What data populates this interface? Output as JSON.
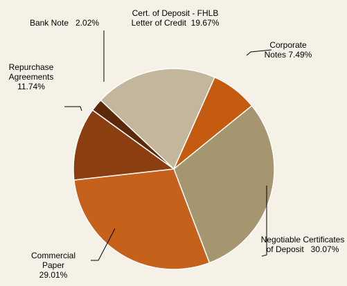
{
  "chart_data": {
    "type": "pie",
    "categories": [
      "Cert. of Deposit - FHLB Letter of Credit",
      "Corporate Notes",
      "Negotiable Certificates of Deposit",
      "Commercial Paper",
      "Repurchase Agreements",
      "Bank Note"
    ],
    "values": [
      19.67,
      7.49,
      30.07,
      29.01,
      11.74,
      2.02
    ],
    "value_labels": [
      "19.67%",
      "7.49%",
      "30.07%",
      "29.01%",
      "11.74%",
      "2.02%"
    ],
    "colors": [
      "#c3b69c",
      "#c55a11",
      "#a69670",
      "#c5611b",
      "#8b3e10",
      "#5c2a0b"
    ]
  }
}
